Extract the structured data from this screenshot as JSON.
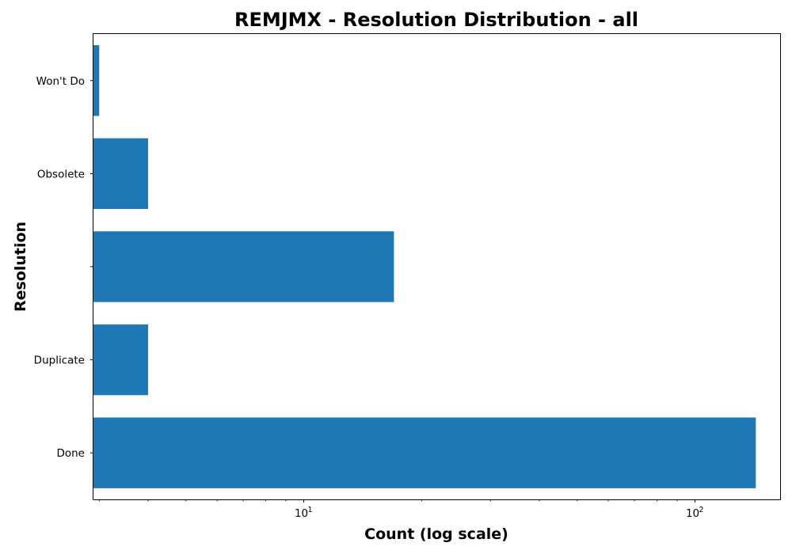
{
  "chart_data": {
    "type": "bar",
    "orientation": "horizontal",
    "title": "REMJMX - Resolution Distribution - all",
    "xlabel": "Count (log scale)",
    "ylabel": "Resolution",
    "x_scale": "log",
    "xlim": [
      2.9,
      165
    ],
    "categories": [
      "Done",
      "Duplicate",
      "",
      "Obsolete",
      "Won't Do"
    ],
    "values": [
      143,
      4,
      17,
      4,
      3
    ],
    "x_ticks": [
      {
        "base": "10",
        "exponent": "1",
        "value": 10
      },
      {
        "base": "10",
        "exponent": "2",
        "value": 100
      }
    ],
    "bar_color": "#1f77b4",
    "grid": false,
    "legend": "none"
  }
}
